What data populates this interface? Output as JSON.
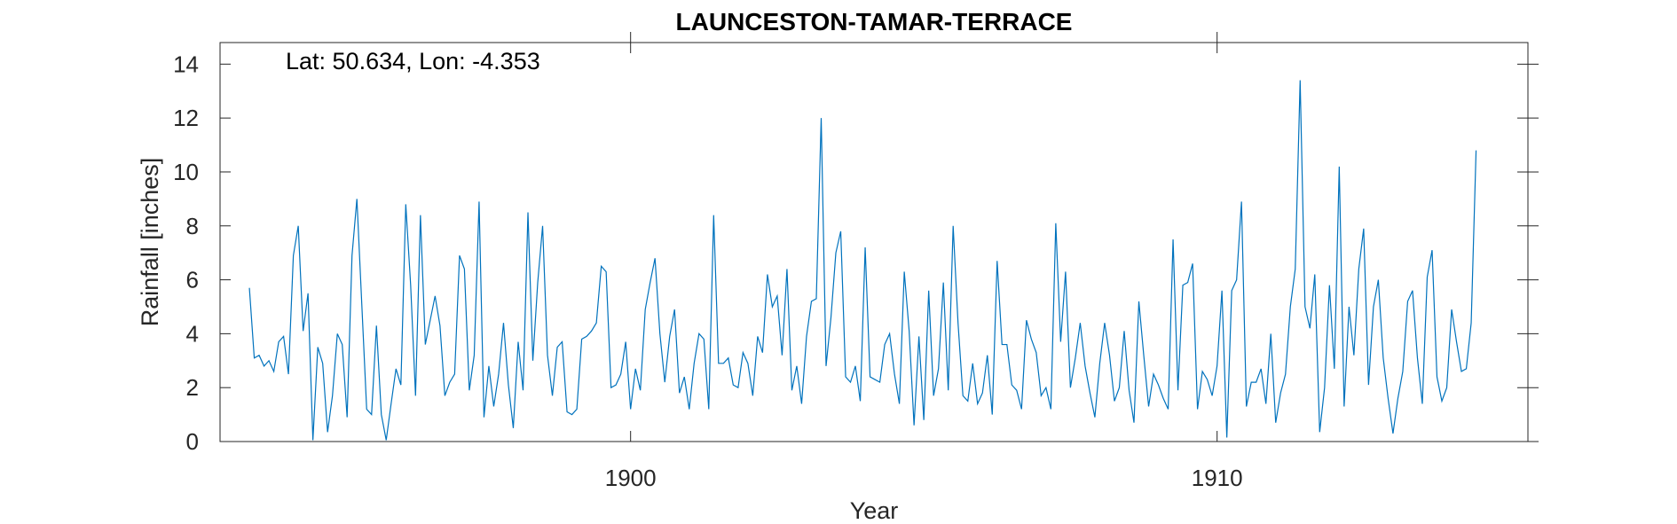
{
  "chart_data": {
    "type": "line",
    "title": "LAUNCESTON-TAMAR-TERRACE",
    "xlabel": "Year",
    "ylabel": "Rainfall [inches]",
    "annotation": "Lat: 50.634, Lon: -4.353",
    "xlim": [
      1893.0,
      1915.3
    ],
    "ylim": [
      0,
      14.8
    ],
    "xticks": [
      1900,
      1910
    ],
    "yticks": [
      0,
      2,
      4,
      6,
      8,
      10,
      12,
      14
    ],
    "line_color": "#0072BD",
    "grid": false,
    "series": [
      {
        "start_year": 1893.5,
        "step_years": 0.08333,
        "values": [
          5.7,
          3.1,
          3.2,
          2.8,
          3.0,
          2.6,
          3.7,
          3.9,
          2.5,
          6.9,
          8.0,
          4.1,
          5.5,
          0.05,
          3.5,
          2.9,
          0.35,
          1.7,
          4.0,
          3.6,
          0.9,
          6.9,
          9.0,
          5.1,
          1.2,
          1.0,
          4.3,
          1.0,
          0.05,
          1.4,
          2.7,
          2.1,
          8.8,
          5.8,
          1.7,
          8.4,
          3.6,
          4.5,
          5.4,
          4.3,
          1.7,
          2.2,
          2.5,
          6.9,
          6.4,
          1.9,
          3.2,
          8.9,
          0.9,
          2.8,
          1.3,
          2.5,
          4.4,
          2.1,
          0.5,
          3.7,
          1.9,
          8.5,
          3.0,
          5.9,
          8.0,
          3.2,
          1.7,
          3.5,
          3.7,
          1.1,
          1.0,
          1.2,
          3.8,
          3.9,
          4.1,
          4.4,
          6.5,
          6.3,
          2.0,
          2.1,
          2.5,
          3.7,
          1.2,
          2.7,
          1.9,
          4.9,
          5.9,
          6.8,
          4.0,
          2.2,
          3.9,
          4.9,
          1.8,
          2.4,
          1.2,
          2.9,
          4.0,
          3.8,
          1.2,
          8.4,
          2.9,
          2.9,
          3.1,
          2.1,
          2.0,
          3.3,
          2.9,
          1.7,
          3.9,
          3.3,
          6.2,
          5.0,
          5.4,
          3.2,
          6.4,
          1.9,
          2.8,
          1.4,
          3.9,
          5.2,
          5.3,
          12.0,
          2.8,
          4.6,
          7.0,
          7.8,
          2.4,
          2.2,
          2.8,
          1.5,
          7.2,
          2.4,
          2.3,
          2.2,
          3.6,
          4.0,
          2.5,
          1.4,
          6.3,
          4.1,
          0.6,
          3.9,
          0.8,
          5.6,
          1.7,
          2.7,
          5.9,
          1.9,
          8.0,
          4.4,
          1.7,
          1.5,
          2.9,
          1.4,
          1.8,
          3.2,
          1.0,
          6.7,
          3.6,
          3.6,
          2.1,
          1.9,
          1.2,
          4.5,
          3.8,
          3.3,
          1.7,
          2.0,
          1.2,
          8.1,
          3.7,
          6.3,
          2.0,
          3.1,
          4.4,
          2.8,
          1.8,
          0.9,
          2.9,
          4.4,
          3.2,
          1.5,
          2.0,
          4.1,
          1.9,
          0.7,
          5.2,
          3.2,
          1.3,
          2.5,
          2.1,
          1.6,
          1.2,
          7.5,
          1.9,
          5.8,
          5.9,
          6.6,
          1.2,
          2.6,
          2.3,
          1.7,
          2.8,
          5.6,
          0.15,
          5.6,
          6.0,
          8.9,
          1.3,
          2.2,
          2.2,
          2.7,
          1.4,
          4.0,
          0.7,
          1.8,
          2.5,
          5.0,
          6.4,
          13.4,
          5.0,
          4.2,
          6.2,
          0.35,
          2.0,
          5.8,
          2.7,
          10.2,
          1.3,
          5.0,
          3.2,
          6.4,
          7.9,
          2.1,
          5.0,
          6.0,
          3.1,
          1.6,
          0.3,
          1.6,
          2.6,
          5.2,
          5.6,
          3.1,
          1.4,
          6.1,
          7.1,
          2.4,
          1.5,
          2.0,
          4.9,
          3.7,
          2.6,
          2.7,
          4.4,
          10.8
        ]
      }
    ]
  }
}
